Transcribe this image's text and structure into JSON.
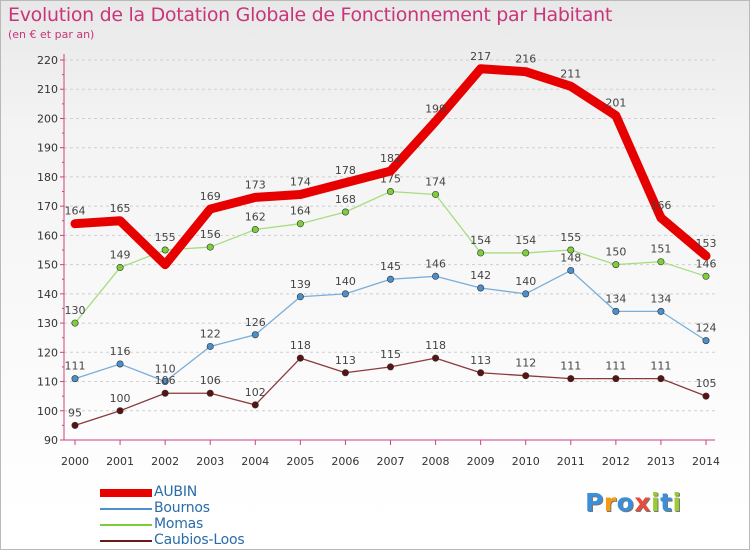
{
  "title": "Evolution de la Dotation Globale de Fonctionnement par Habitant",
  "subtitle": "(en € et par an)",
  "logo": "Proxiti",
  "colors": {
    "title": "#c9357a",
    "axis": "#d04080",
    "grid": "#cfcfcf"
  },
  "chart_data": {
    "type": "line",
    "title": "Evolution de la Dotation Globale de Fonctionnement par Habitant",
    "subtitle": "(en € et par an)",
    "xlabel": "",
    "ylabel": "",
    "ylim": [
      90,
      220
    ],
    "ytick_step": 10,
    "grid": "dashed horizontal",
    "legend_position": "bottom-left",
    "x": [
      "2000",
      "2001",
      "2002",
      "2003",
      "2004",
      "2005",
      "2006",
      "2007",
      "2008",
      "2009",
      "2010",
      "2011",
      "2012",
      "2013",
      "2014"
    ],
    "series": [
      {
        "name": "AUBIN",
        "color": "#e60000",
        "line": "#e60000",
        "marker": "#e60000",
        "thick": true,
        "values": [
          164,
          165,
          150,
          169,
          173,
          174,
          178,
          182,
          199,
          217,
          216,
          211,
          201,
          166,
          153
        ],
        "labels": [
          "164",
          "165",
          "",
          "169",
          "173",
          "174",
          "178",
          "182",
          "199",
          "217",
          "216",
          "211",
          "201",
          "166",
          "153"
        ]
      },
      {
        "name": "Bournos",
        "color": "#4a8fce",
        "line": "#7aaed8",
        "marker": "#4a8fce",
        "thick": false,
        "values": [
          111,
          116,
          110,
          122,
          126,
          139,
          140,
          145,
          146,
          142,
          140,
          148,
          134,
          134,
          124
        ],
        "labels": [
          "111",
          "116",
          "110",
          "122",
          "126",
          "139",
          "140",
          "145",
          "146",
          "142",
          "140",
          "148",
          "134",
          "134",
          "124"
        ]
      },
      {
        "name": "Momas",
        "color": "#7ccf3a",
        "line": "#a6dd80",
        "marker": "#7ccf3a",
        "thick": false,
        "values": [
          130,
          149,
          155,
          156,
          162,
          164,
          168,
          175,
          174,
          154,
          154,
          155,
          150,
          151,
          146
        ],
        "labels": [
          "130",
          "149",
          "155",
          "156",
          "162",
          "164",
          "168",
          "175",
          "174",
          "154",
          "154",
          "155",
          "150",
          "151",
          "146"
        ]
      },
      {
        "name": "Caubios-Loos",
        "color": "#6b1a1a",
        "line": "#8a3a3a",
        "marker": "#5a1212",
        "thick": false,
        "values": [
          95,
          100,
          106,
          106,
          102,
          118,
          113,
          115,
          118,
          113,
          112,
          111,
          111,
          111,
          105
        ],
        "labels": [
          "95",
          "100",
          "106",
          "106",
          "102",
          "118",
          "113",
          "115",
          "118",
          "113",
          "112",
          "111",
          "111",
          "111",
          "105"
        ]
      }
    ]
  }
}
